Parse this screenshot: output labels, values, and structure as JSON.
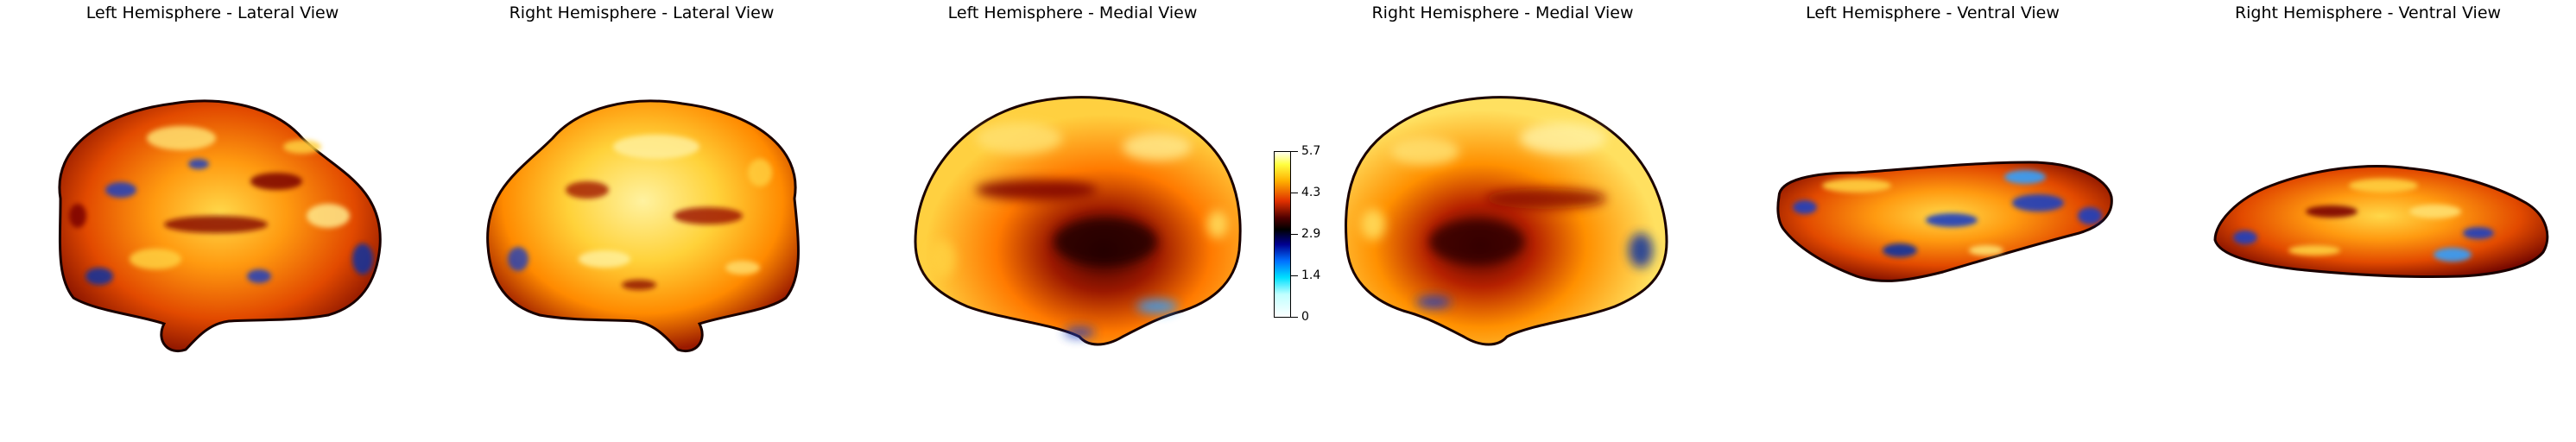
{
  "panels": [
    {
      "title": "Left Hemisphere - Lateral View"
    },
    {
      "title": "Right Hemisphere - Lateral View"
    },
    {
      "title": "Left Hemisphere - Medial View"
    },
    {
      "title": "Right Hemisphere - Medial View"
    },
    {
      "title": "Left Hemisphere - Ventral View"
    },
    {
      "title": "Right Hemisphere - Ventral View"
    }
  ],
  "colorbar": {
    "ticks": [
      "5.7",
      "4.3",
      "2.9",
      "1.4",
      "0"
    ],
    "colormap": [
      "#ffffff",
      "#ffff40",
      "#ffc000",
      "#ff5000",
      "#d01000",
      "#600000",
      "#000000",
      "#000080",
      "#0060ff",
      "#00e0ff",
      "#ffffff"
    ]
  },
  "colors": {
    "fill_hot": "#ff8c00",
    "fill_light": "#ffe36a",
    "fill_dark": "#8a0000",
    "fill_cool": "#1840c0",
    "outline": "#1a0000"
  }
}
